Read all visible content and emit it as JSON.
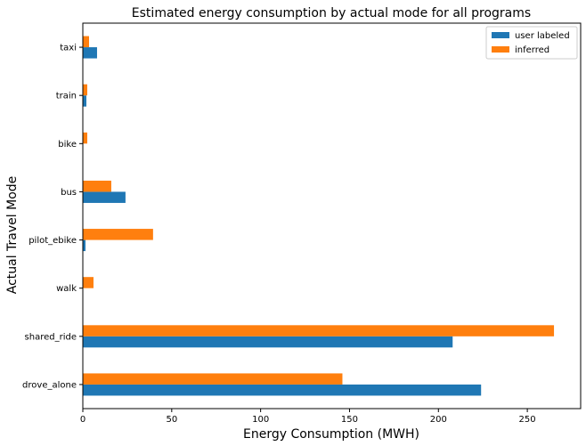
{
  "chart_data": {
    "type": "bar",
    "orientation": "horizontal",
    "title": "Estimated energy consumption by actual mode for all programs",
    "xlabel": "Energy Consumption (MWH)",
    "ylabel": "Actual Travel Mode",
    "categories": [
      "drove_alone",
      "shared_ride",
      "walk",
      "pilot_ebike",
      "bus",
      "bike",
      "train",
      "taxi"
    ],
    "series": [
      {
        "name": "user labeled",
        "color": "#1f77b4",
        "values": [
          224,
          208,
          0,
          1.5,
          24,
          0,
          2,
          8
        ]
      },
      {
        "name": "inferred",
        "color": "#ff7f0e",
        "values": [
          146,
          265,
          6,
          39.5,
          16,
          2.5,
          2.5,
          3.5
        ]
      }
    ],
    "xlim": [
      0,
      280
    ],
    "xticks": [
      0,
      50,
      100,
      150,
      200,
      250
    ],
    "legend_position": "top-right",
    "grid": false
  }
}
